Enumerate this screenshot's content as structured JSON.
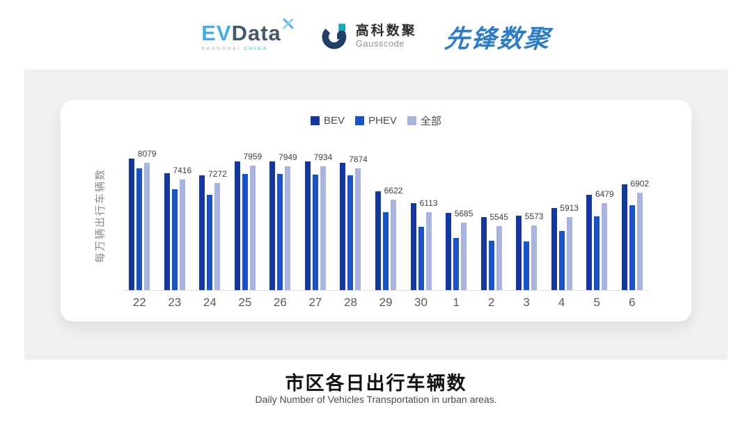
{
  "header": {
    "evdata": {
      "ev": "EV",
      "data": "Data",
      "sub_left": "SHANGHAI",
      "sub_right": "CHINA"
    },
    "gausscode": {
      "cn": "高科数聚",
      "en": "Gausscode"
    },
    "xianfeng": {
      "text": "先锋数聚"
    }
  },
  "chart_data": {
    "type": "bar",
    "title": "",
    "categories": [
      "22",
      "23",
      "24",
      "25",
      "26",
      "27",
      "28",
      "29",
      "30",
      "1",
      "2",
      "3",
      "4",
      "5",
      "6"
    ],
    "series": [
      {
        "key": "bev",
        "name": "BEV",
        "color": "#14389E",
        "values": [
          8260,
          7670,
          7570,
          8150,
          8150,
          8140,
          8080,
          6940,
          6480,
          6070,
          5920,
          5970,
          6270,
          6810,
          7220
        ],
        "labels_shown": false
      },
      {
        "key": "phev",
        "name": "PHEV",
        "color": "#1A52C8",
        "values": [
          7850,
          7020,
          6800,
          7650,
          7630,
          7610,
          7570,
          6100,
          5540,
          5070,
          4960,
          4950,
          5350,
          5940,
          6380
        ],
        "labels_shown": false
      },
      {
        "key": "all",
        "name": "全部",
        "color": "#AAB5DF",
        "values": [
          8079,
          7416,
          7272,
          7959,
          7949,
          7934,
          7874,
          6622,
          6113,
          5685,
          5545,
          5573,
          5913,
          6479,
          6902
        ],
        "labels_shown": true
      }
    ],
    "value_labels": "shown only for 全部 series, above its bar",
    "xlabel": "",
    "ylabel": "每万辆出行车辆数",
    "y_axis": {
      "min": 3000,
      "max": 8500,
      "ticks_shown": false
    },
    "legend": [
      "BEV",
      "PHEV",
      "全部"
    ],
    "legend_position": "top-center",
    "grid": false
  },
  "footer": {
    "title": "市区各日出行车辆数",
    "subtitle": "Daily Number of Vehicles Transportation in urban areas."
  }
}
